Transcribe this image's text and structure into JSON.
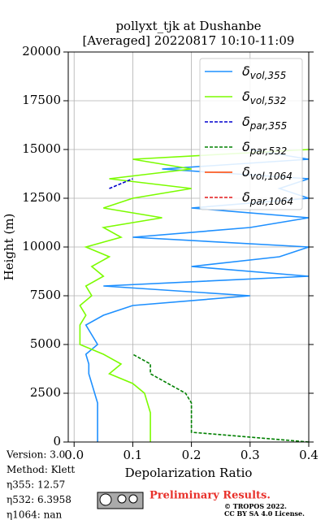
{
  "chart_data": {
    "type": "line",
    "title": "pollyxt_tjk at Dushanbe",
    "subtitle": "[Averaged] 20220817 10:10-11:09",
    "x_label": "Depolarization Ratio",
    "y_label": "Height (m)",
    "xlim": [
      -0.01,
      0.4
    ],
    "xticks": [
      {
        "value": 0,
        "label": "0.0"
      },
      0.1,
      0.2,
      0.3,
      0.4
    ],
    "ylim": [
      0,
      20000
    ],
    "yticks": [
      0,
      2500,
      5000,
      7500,
      10000,
      12500,
      15000,
      17500,
      20000
    ],
    "grid": true,
    "legend": "upper right",
    "y": [
      0,
      500,
      1000,
      1500,
      2000,
      2500,
      3000,
      3500,
      4000,
      4500,
      5000,
      5500,
      6000,
      6500,
      7000,
      7500,
      8000,
      8500,
      9000,
      9500,
      10000,
      10500,
      11000,
      11500,
      12000,
      12500,
      13000,
      13500,
      14000,
      14500,
      15000
    ],
    "series": [
      {
        "name": "δvol,355",
        "color": "#1e90ff",
        "dash": false,
        "values": [
          0.04,
          0.04,
          0.04,
          0.04,
          0.04,
          0.035,
          0.03,
          0.025,
          0.025,
          0.02,
          0.04,
          0.03,
          0.02,
          0.05,
          0.1,
          0.3,
          0.05,
          0.4,
          0.2,
          0.35,
          0.4,
          0.1,
          0.3,
          0.4,
          0.2,
          0.4,
          0.35,
          0.4,
          0.15,
          0.4,
          0.3
        ]
      },
      {
        "name": "δvol,532",
        "color": "#7cfc00",
        "dash": false,
        "values": [
          0.13,
          0.13,
          0.13,
          0.13,
          0.125,
          0.12,
          0.1,
          0.06,
          0.08,
          0.05,
          0.01,
          0.01,
          0.01,
          0.02,
          0.01,
          0.03,
          0.02,
          0.05,
          0.03,
          0.06,
          0.02,
          0.08,
          0.05,
          0.15,
          0.05,
          0.1,
          0.2,
          0.06,
          0.2,
          0.1,
          0.4
        ]
      },
      {
        "name": "δpar,355",
        "color": "#0000cd",
        "dash": true,
        "values": [
          null,
          null,
          null,
          null,
          null,
          null,
          null,
          null,
          null,
          null,
          null,
          null,
          null,
          null,
          null,
          null,
          null,
          null,
          null,
          null,
          null,
          null,
          null,
          null,
          null,
          null,
          0.06,
          0.1,
          null,
          null,
          null
        ]
      },
      {
        "name": "δpar,532",
        "color": "#008000",
        "dash": true,
        "values": [
          0.4,
          0.2,
          0.2,
          0.2,
          0.2,
          0.19,
          0.16,
          0.13,
          0.13,
          0.1,
          null,
          null,
          null,
          null,
          null,
          null,
          null,
          null,
          null,
          null,
          null,
          null,
          null,
          null,
          null,
          null,
          null,
          null,
          null,
          null,
          null
        ]
      },
      {
        "name": "δvol,1064",
        "color": "#ff4500",
        "dash": false,
        "values": [
          null,
          null,
          null,
          null,
          null,
          null,
          null,
          null,
          null,
          null,
          null,
          null,
          null,
          null,
          null,
          null,
          null,
          null,
          null,
          null,
          null,
          null,
          null,
          null,
          null,
          null,
          null,
          null,
          null,
          null,
          null
        ]
      },
      {
        "name": "δpar,1064",
        "color": "#e41a1c",
        "dash": true,
        "values": [
          null,
          null,
          null,
          null,
          null,
          null,
          null,
          null,
          null,
          null,
          null,
          null,
          null,
          null,
          null,
          null,
          null,
          null,
          null,
          null,
          null,
          null,
          null,
          null,
          null,
          null,
          null,
          null,
          null,
          null,
          null
        ]
      }
    ],
    "info": [
      "Version: 3.0",
      "Method: Klett",
      "η355:  12.57",
      "η532: 6.3958",
      "η1064:    nan"
    ],
    "notice": "Preliminary Results.",
    "copyright": [
      "© TROPOS 2022.",
      "CC BY SA 4.0 License."
    ]
  }
}
